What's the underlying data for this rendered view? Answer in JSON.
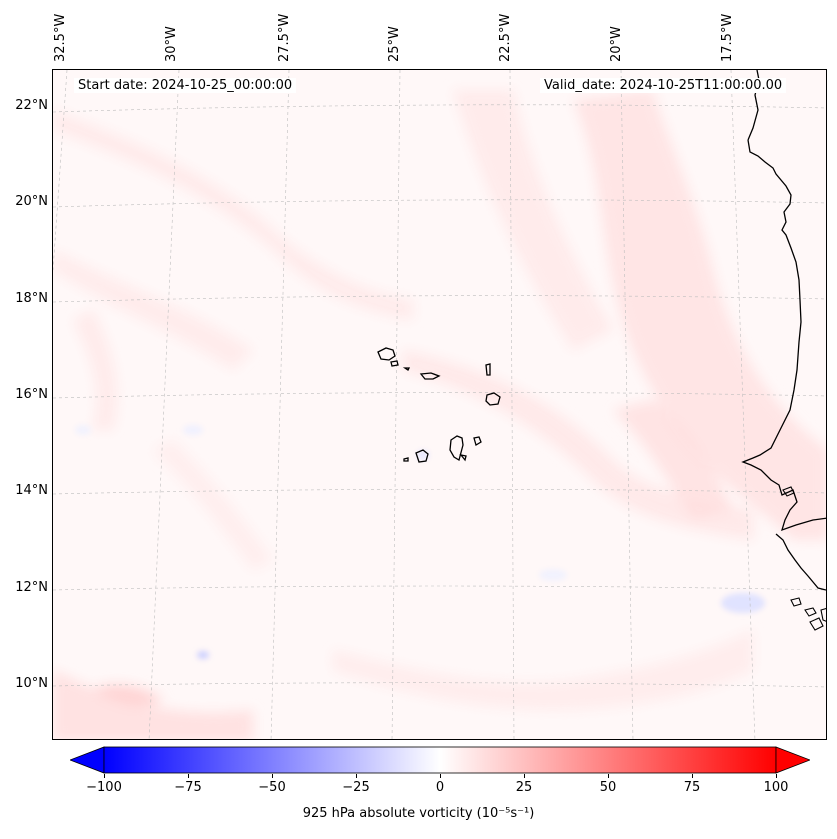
{
  "map": {
    "header_left": "Start date: 2024-10-25_00:00:00",
    "header_right": "Valid_date: 2024-10-25T11:00:00.00",
    "lon_labels": [
      "32.5°W",
      "30°W",
      "27.5°W",
      "25°W",
      "22.5°W",
      "20°W",
      "17.5°W"
    ],
    "lat_labels": [
      "22°N",
      "20°N",
      "18°N",
      "16°N",
      "14°N",
      "12°N",
      "10°N"
    ],
    "field": "925 hPa absolute vorticity",
    "colors": {
      "negative": "#0000ff",
      "neutral": "#ffffff",
      "positive": "#ff0000",
      "coastline": "#000000",
      "gridline": "#bdbdbd"
    },
    "features": [
      "Cape Verde islands",
      "West African coastline (Senegal, Gambia, Guinea-Bissau)"
    ]
  },
  "colorbar": {
    "title": "925 hPa absolute vorticity (10⁻⁵s⁻¹)",
    "min": -100,
    "max": 100,
    "ticks": [
      "−100",
      "−75",
      "−50",
      "−25",
      "0",
      "25",
      "50",
      "75",
      "100"
    ],
    "extend": "both"
  }
}
